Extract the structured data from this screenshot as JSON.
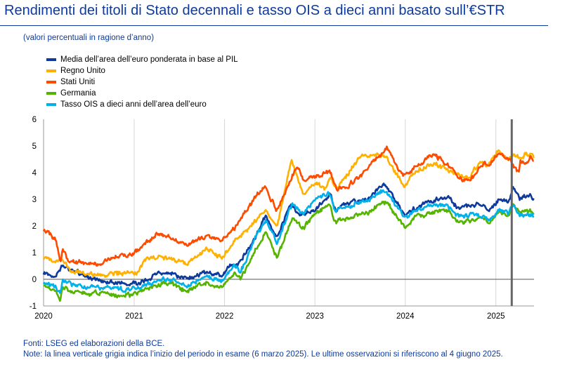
{
  "header": {
    "title": "Rendimenti dei titoli di Stato decennali e tasso OIS a dieci anni basato sull’€STR",
    "subtitle": "(valori percentuali in ragione d’anno)"
  },
  "footer": {
    "source": "Fonti: LSEG ed elaborazioni della BCE.",
    "note": "Note: la linea verticale grigia indica l’inizio del periodo in esame (6 marzo 2025). Le ultime osservazioni si riferiscono al 4 giugno 2025."
  },
  "chart_data": {
    "type": "line",
    "x_range": [
      "2020-01-01",
      "2025-06-04"
    ],
    "xlabel": "",
    "ylabel": "",
    "ylim": [
      -1,
      6
    ],
    "y_ticks": [
      "-1",
      "0",
      "1",
      "2",
      "3",
      "4",
      "5",
      "6"
    ],
    "x_ticks": [
      {
        "label": "2020",
        "date": "2020-01-01"
      },
      {
        "label": "2021",
        "date": "2021-01-01"
      },
      {
        "label": "2022",
        "date": "2022-01-01"
      },
      {
        "label": "2023",
        "date": "2023-01-01"
      },
      {
        "label": "2024",
        "date": "2024-01-01"
      },
      {
        "label": "2025",
        "date": "2025-01-01"
      }
    ],
    "vertical_marker": "2025-03-06",
    "grid": "vertical",
    "legend_position": "top-left",
    "series": [
      {
        "name": "Media dell’area dell’euro ponderata in base al PIL",
        "color": "#0d3a9c",
        "points": [
          [
            "2020-01-01",
            0.25
          ],
          [
            "2020-02-20",
            0.1
          ],
          [
            "2020-03-18",
            0.6
          ],
          [
            "2020-04-15",
            0.35
          ],
          [
            "2020-06-01",
            0.2
          ],
          [
            "2020-08-01",
            0.0
          ],
          [
            "2020-10-01",
            -0.1
          ],
          [
            "2020-12-15",
            -0.2
          ],
          [
            "2021-02-01",
            -0.1
          ],
          [
            "2021-03-15",
            0.1
          ],
          [
            "2021-05-20",
            0.25
          ],
          [
            "2021-08-01",
            0.0
          ],
          [
            "2021-10-20",
            0.25
          ],
          [
            "2021-12-20",
            0.15
          ],
          [
            "2022-01-25",
            0.5
          ],
          [
            "2022-03-01",
            0.6
          ],
          [
            "2022-05-01",
            1.5
          ],
          [
            "2022-06-15",
            2.4
          ],
          [
            "2022-08-01",
            1.5
          ],
          [
            "2022-09-25",
            2.8
          ],
          [
            "2022-11-01",
            2.4
          ],
          [
            "2023-01-01",
            2.6
          ],
          [
            "2023-03-05",
            3.2
          ],
          [
            "2023-03-20",
            2.6
          ],
          [
            "2023-06-01",
            2.9
          ],
          [
            "2023-08-01",
            3.0
          ],
          [
            "2023-10-05",
            3.55
          ],
          [
            "2023-11-01",
            3.3
          ],
          [
            "2023-12-28",
            2.4
          ],
          [
            "2024-02-15",
            2.7
          ],
          [
            "2024-04-15",
            2.95
          ],
          [
            "2024-06-15",
            3.1
          ],
          [
            "2024-08-05",
            2.65
          ],
          [
            "2024-09-15",
            2.75
          ],
          [
            "2024-11-15",
            2.8
          ],
          [
            "2024-12-02",
            2.55
          ],
          [
            "2025-01-15",
            3.0
          ],
          [
            "2025-02-20",
            2.9
          ],
          [
            "2025-03-12",
            3.4
          ],
          [
            "2025-04-07",
            3.0
          ],
          [
            "2025-05-01",
            3.15
          ],
          [
            "2025-06-04",
            3.0
          ]
        ]
      },
      {
        "name": "Regno Unito",
        "color": "#ffb000",
        "points": [
          [
            "2020-01-01",
            0.8
          ],
          [
            "2020-02-20",
            0.6
          ],
          [
            "2020-03-18",
            0.75
          ],
          [
            "2020-05-01",
            0.25
          ],
          [
            "2020-08-01",
            0.15
          ],
          [
            "2020-12-15",
            0.25
          ],
          [
            "2021-01-10",
            0.25
          ],
          [
            "2021-02-20",
            0.75
          ],
          [
            "2021-03-15",
            0.85
          ],
          [
            "2021-06-01",
            0.8
          ],
          [
            "2021-08-01",
            0.55
          ],
          [
            "2021-10-20",
            1.15
          ],
          [
            "2021-12-20",
            0.8
          ],
          [
            "2022-02-10",
            1.45
          ],
          [
            "2022-04-10",
            1.9
          ],
          [
            "2022-06-15",
            2.6
          ],
          [
            "2022-08-01",
            1.95
          ],
          [
            "2022-09-27",
            4.5
          ],
          [
            "2022-11-15",
            3.2
          ],
          [
            "2023-01-01",
            3.65
          ],
          [
            "2023-02-15",
            3.4
          ],
          [
            "2023-03-01",
            3.8
          ],
          [
            "2023-04-01",
            3.4
          ],
          [
            "2023-07-01",
            4.6
          ],
          [
            "2023-08-18",
            4.7
          ],
          [
            "2023-10-15",
            4.6
          ],
          [
            "2023-11-15",
            4.1
          ],
          [
            "2023-12-28",
            3.5
          ],
          [
            "2024-02-15",
            4.1
          ],
          [
            "2024-04-30",
            4.35
          ],
          [
            "2024-06-15",
            4.1
          ],
          [
            "2024-08-05",
            3.9
          ],
          [
            "2024-09-15",
            3.8
          ],
          [
            "2024-11-01",
            4.45
          ],
          [
            "2024-12-02",
            4.25
          ],
          [
            "2025-01-10",
            4.85
          ],
          [
            "2025-02-20",
            4.5
          ],
          [
            "2025-03-12",
            4.7
          ],
          [
            "2025-04-07",
            4.5
          ],
          [
            "2025-05-01",
            4.7
          ],
          [
            "2025-06-04",
            4.6
          ]
        ]
      },
      {
        "name": "Stati Uniti",
        "color": "#ff4b00",
        "points": [
          [
            "2020-01-01",
            1.85
          ],
          [
            "2020-02-20",
            1.5
          ],
          [
            "2020-03-09",
            0.6
          ],
          [
            "2020-03-18",
            1.15
          ],
          [
            "2020-04-15",
            0.65
          ],
          [
            "2020-08-01",
            0.55
          ],
          [
            "2020-11-01",
            0.85
          ],
          [
            "2020-12-31",
            0.95
          ],
          [
            "2021-02-20",
            1.4
          ],
          [
            "2021-03-30",
            1.7
          ],
          [
            "2021-06-01",
            1.55
          ],
          [
            "2021-08-01",
            1.25
          ],
          [
            "2021-10-20",
            1.65
          ],
          [
            "2021-12-20",
            1.45
          ],
          [
            "2022-02-15",
            2.0
          ],
          [
            "2022-04-15",
            2.8
          ],
          [
            "2022-05-05",
            3.1
          ],
          [
            "2022-06-14",
            3.45
          ],
          [
            "2022-08-01",
            2.6
          ],
          [
            "2022-10-21",
            4.25
          ],
          [
            "2022-11-15",
            3.75
          ],
          [
            "2023-01-01",
            3.85
          ],
          [
            "2023-03-01",
            4.05
          ],
          [
            "2023-04-01",
            3.4
          ],
          [
            "2023-05-15",
            3.5
          ],
          [
            "2023-07-01",
            3.85
          ],
          [
            "2023-08-18",
            4.3
          ],
          [
            "2023-10-19",
            4.95
          ],
          [
            "2023-11-15",
            4.4
          ],
          [
            "2023-12-28",
            3.85
          ],
          [
            "2024-02-15",
            4.25
          ],
          [
            "2024-04-25",
            4.7
          ],
          [
            "2024-06-15",
            4.3
          ],
          [
            "2024-08-05",
            3.8
          ],
          [
            "2024-09-16",
            3.65
          ],
          [
            "2024-11-15",
            4.4
          ],
          [
            "2024-12-02",
            4.2
          ],
          [
            "2025-01-14",
            4.8
          ],
          [
            "2025-02-20",
            4.5
          ],
          [
            "2025-03-12",
            4.3
          ],
          [
            "2025-04-04",
            4.0
          ],
          [
            "2025-04-11",
            4.45
          ],
          [
            "2025-05-01",
            4.3
          ],
          [
            "2025-05-20",
            4.55
          ],
          [
            "2025-06-04",
            4.45
          ]
        ]
      },
      {
        "name": "Germania",
        "color": "#55b400",
        "points": [
          [
            "2020-01-01",
            -0.2
          ],
          [
            "2020-02-20",
            -0.45
          ],
          [
            "2020-03-09",
            -0.8
          ],
          [
            "2020-03-18",
            -0.3
          ],
          [
            "2020-05-01",
            -0.5
          ],
          [
            "2020-08-01",
            -0.5
          ],
          [
            "2020-11-01",
            -0.6
          ],
          [
            "2020-12-31",
            -0.55
          ],
          [
            "2021-02-20",
            -0.35
          ],
          [
            "2021-05-20",
            -0.1
          ],
          [
            "2021-08-01",
            -0.45
          ],
          [
            "2021-10-20",
            -0.1
          ],
          [
            "2021-12-20",
            -0.35
          ],
          [
            "2022-02-10",
            0.25
          ],
          [
            "2022-03-07",
            0.0
          ],
          [
            "2022-05-05",
            1.1
          ],
          [
            "2022-06-15",
            1.75
          ],
          [
            "2022-08-01",
            0.8
          ],
          [
            "2022-10-01",
            2.3
          ],
          [
            "2022-11-15",
            1.9
          ],
          [
            "2023-01-01",
            2.5
          ],
          [
            "2023-03-02",
            2.75
          ],
          [
            "2023-03-20",
            2.15
          ],
          [
            "2023-06-01",
            2.35
          ],
          [
            "2023-08-01",
            2.5
          ],
          [
            "2023-10-05",
            2.95
          ],
          [
            "2023-11-01",
            2.7
          ],
          [
            "2023-12-28",
            1.95
          ],
          [
            "2024-02-15",
            2.35
          ],
          [
            "2024-04-15",
            2.5
          ],
          [
            "2024-06-15",
            2.6
          ],
          [
            "2024-08-05",
            2.15
          ],
          [
            "2024-09-15",
            2.2
          ],
          [
            "2024-11-15",
            2.35
          ],
          [
            "2024-12-02",
            2.05
          ],
          [
            "2025-01-15",
            2.6
          ],
          [
            "2025-02-20",
            2.4
          ],
          [
            "2025-03-12",
            2.85
          ],
          [
            "2025-04-07",
            2.5
          ],
          [
            "2025-05-01",
            2.6
          ],
          [
            "2025-06-04",
            2.5
          ]
        ]
      },
      {
        "name": "Tasso OIS a dieci anni dell’area dell’euro",
        "color": "#00b1ea",
        "points": [
          [
            "2020-01-01",
            -0.1
          ],
          [
            "2020-02-20",
            -0.3
          ],
          [
            "2020-03-09",
            -0.55
          ],
          [
            "2020-03-18",
            -0.05
          ],
          [
            "2020-05-01",
            -0.25
          ],
          [
            "2020-08-01",
            -0.3
          ],
          [
            "2020-12-15",
            -0.4
          ],
          [
            "2021-02-20",
            -0.2
          ],
          [
            "2021-05-20",
            0.05
          ],
          [
            "2021-08-01",
            -0.25
          ],
          [
            "2021-10-20",
            0.15
          ],
          [
            "2021-12-20",
            -0.05
          ],
          [
            "2022-02-10",
            0.5
          ],
          [
            "2022-03-07",
            0.3
          ],
          [
            "2022-05-05",
            1.5
          ],
          [
            "2022-06-15",
            2.2
          ],
          [
            "2022-08-01",
            1.35
          ],
          [
            "2022-10-01",
            2.85
          ],
          [
            "2022-11-15",
            2.4
          ],
          [
            "2023-01-01",
            3.0
          ],
          [
            "2023-03-02",
            3.25
          ],
          [
            "2023-03-20",
            2.6
          ],
          [
            "2023-06-01",
            2.8
          ],
          [
            "2023-08-01",
            2.95
          ],
          [
            "2023-10-05",
            3.35
          ],
          [
            "2023-11-01",
            3.1
          ],
          [
            "2023-12-28",
            2.3
          ],
          [
            "2024-02-15",
            2.6
          ],
          [
            "2024-04-15",
            2.75
          ],
          [
            "2024-06-15",
            2.8
          ],
          [
            "2024-08-05",
            2.35
          ],
          [
            "2024-09-15",
            2.4
          ],
          [
            "2024-11-15",
            2.4
          ],
          [
            "2024-12-02",
            2.15
          ],
          [
            "2025-01-15",
            2.6
          ],
          [
            "2025-02-20",
            2.45
          ],
          [
            "2025-03-12",
            2.8
          ],
          [
            "2025-04-07",
            2.4
          ],
          [
            "2025-05-01",
            2.45
          ],
          [
            "2025-06-04",
            2.35
          ]
        ]
      }
    ]
  }
}
